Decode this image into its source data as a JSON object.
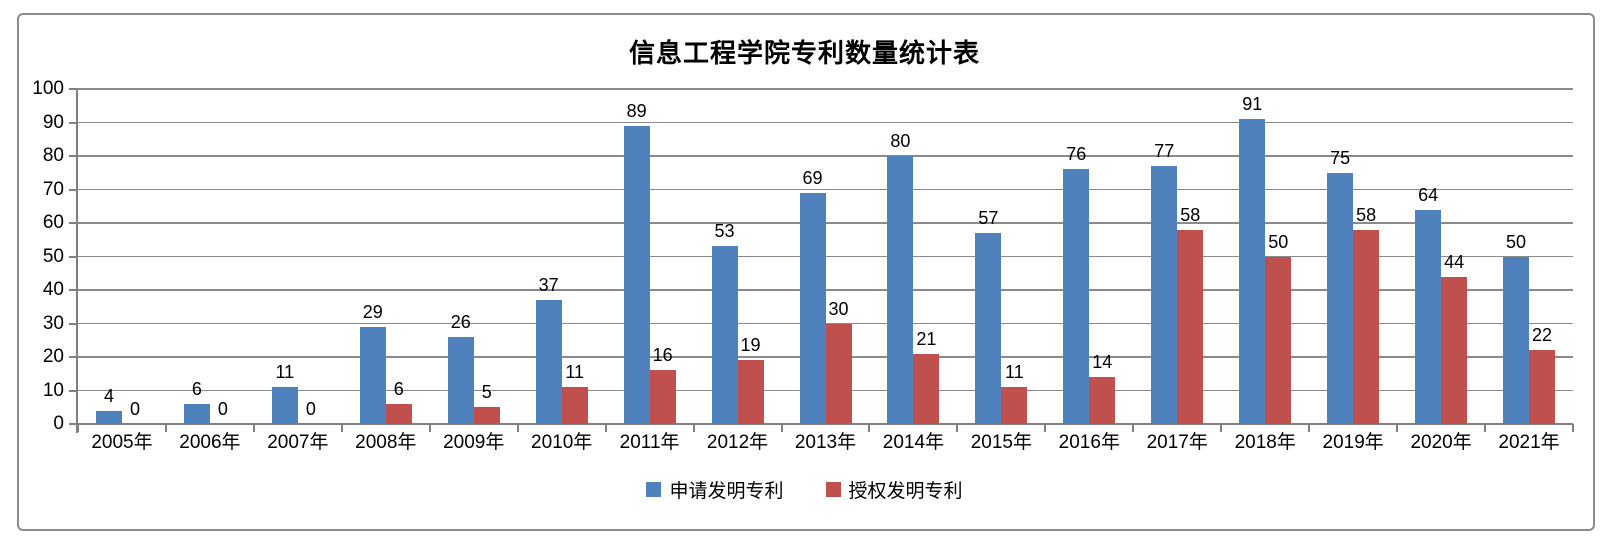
{
  "title": "信息工程学院专利数量统计表",
  "chart_data": {
    "type": "bar",
    "title": "信息工程学院专利数量统计表",
    "categories": [
      "2005年",
      "2006年",
      "2007年",
      "2008年",
      "2009年",
      "2010年",
      "2011年",
      "2012年",
      "2013年",
      "2014年",
      "2015年",
      "2016年",
      "2017年",
      "2018年",
      "2019年",
      "2020年",
      "2021年"
    ],
    "series": [
      {
        "name": "申请发明专利",
        "color": "#4F81BD",
        "values": [
          4,
          6,
          11,
          29,
          26,
          37,
          89,
          53,
          69,
          80,
          57,
          76,
          77,
          91,
          75,
          64,
          50
        ]
      },
      {
        "name": "授权发明专利",
        "color": "#C0504D",
        "values": [
          0,
          0,
          0,
          6,
          5,
          11,
          16,
          19,
          30,
          21,
          11,
          14,
          58,
          50,
          58,
          44,
          22
        ]
      }
    ],
    "xlabel": "",
    "ylabel": "",
    "ylim": [
      0,
      100
    ],
    "ytick_step": 10,
    "grid": "horizontal",
    "legend_position": "bottom",
    "data_labels": true
  },
  "colors": {
    "series_blue": "#4F81BD",
    "series_red": "#C0504D",
    "gridline": "#8a8a8a",
    "axis": "#808080",
    "frame_border": "#8c8c8c",
    "text": "#000000",
    "background": "#FFFFFF"
  }
}
